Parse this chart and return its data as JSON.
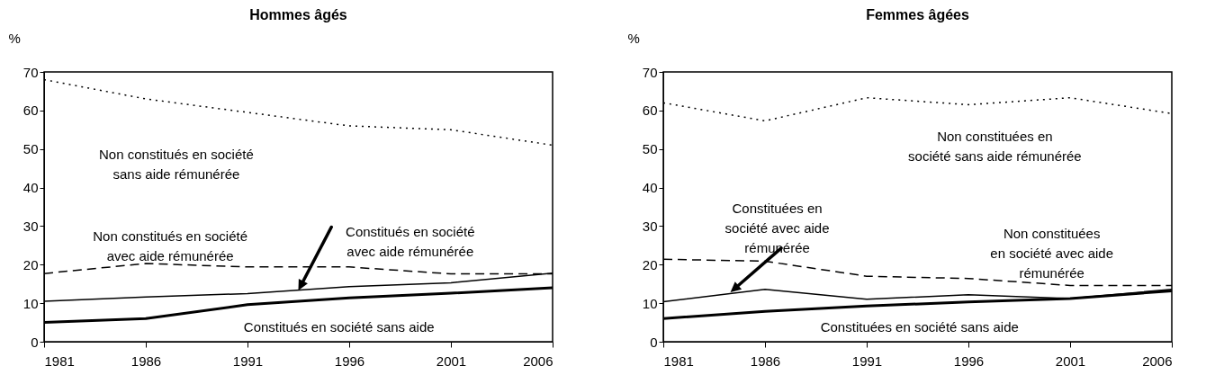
{
  "chart_data": [
    {
      "type": "line",
      "title": "Hommes âgés",
      "ylabel": "%",
      "x": [
        1981,
        1986,
        1991,
        1996,
        2001,
        2006
      ],
      "xlim": [
        1981,
        2006
      ],
      "xticks": [
        1981,
        1986,
        1991,
        1996,
        2001,
        2006
      ],
      "ylim": [
        0,
        70
      ],
      "yticks": [
        0,
        10,
        20,
        30,
        40,
        50,
        60,
        70
      ],
      "grid": false,
      "legend": false,
      "series": [
        {
          "name": "Non constitués en société\nsans aide rémunérée",
          "color": "#000000",
          "line_style": "dotted",
          "values": [
            68,
            63,
            59.5,
            56,
            55,
            51
          ]
        },
        {
          "name": "Non constitués en société\navec aide rémunérée",
          "color": "#000000",
          "line_style": "dashed",
          "values": [
            17.7,
            20.3,
            19.4,
            19.4,
            17.6,
            17.6
          ]
        },
        {
          "name": "Constitués en société\navec aide rémunérée",
          "color": "#000000",
          "line_style": "solid",
          "values": [
            10.5,
            11.6,
            12.5,
            14.3,
            15.3,
            17.8
          ]
        },
        {
          "name": "Constitués en société sans aide",
          "color": "#000000",
          "line_style": "solid",
          "values": [
            5,
            6,
            9.6,
            11.4,
            12.6,
            14
          ]
        }
      ]
    },
    {
      "type": "line",
      "title": "Femmes âgées",
      "ylabel": "%",
      "x": [
        1981,
        1986,
        1991,
        1996,
        2001,
        2006
      ],
      "xlim": [
        1981,
        2006
      ],
      "xticks": [
        1981,
        1986,
        1991,
        1996,
        2001,
        2006
      ],
      "ylim": [
        0,
        70
      ],
      "yticks": [
        0,
        10,
        20,
        30,
        40,
        50,
        60,
        70
      ],
      "grid": false,
      "legend": false,
      "series": [
        {
          "name": "Non constituées en\nsociété sans aide rémunérée",
          "color": "#000000",
          "line_style": "dotted",
          "values": [
            62,
            57.3,
            63.3,
            61.5,
            63.3,
            59.2
          ]
        },
        {
          "name": "Non constituées\nen société avec aide\nrémunérée",
          "color": "#000000",
          "line_style": "dashed",
          "values": [
            21.4,
            20.9,
            17,
            16.4,
            14.6,
            14.6
          ]
        },
        {
          "name": "Constituées en\nsociété avec aide\nrémunérée",
          "color": "#000000",
          "line_style": "solid",
          "values": [
            10.4,
            13.6,
            11,
            12.2,
            11.2,
            13.6
          ]
        },
        {
          "name": "Constituées en société sans aide",
          "color": "#000000",
          "line_style": "solid",
          "values": [
            6,
            7.9,
            9.3,
            10.3,
            11.2,
            13.2
          ]
        }
      ]
    }
  ]
}
